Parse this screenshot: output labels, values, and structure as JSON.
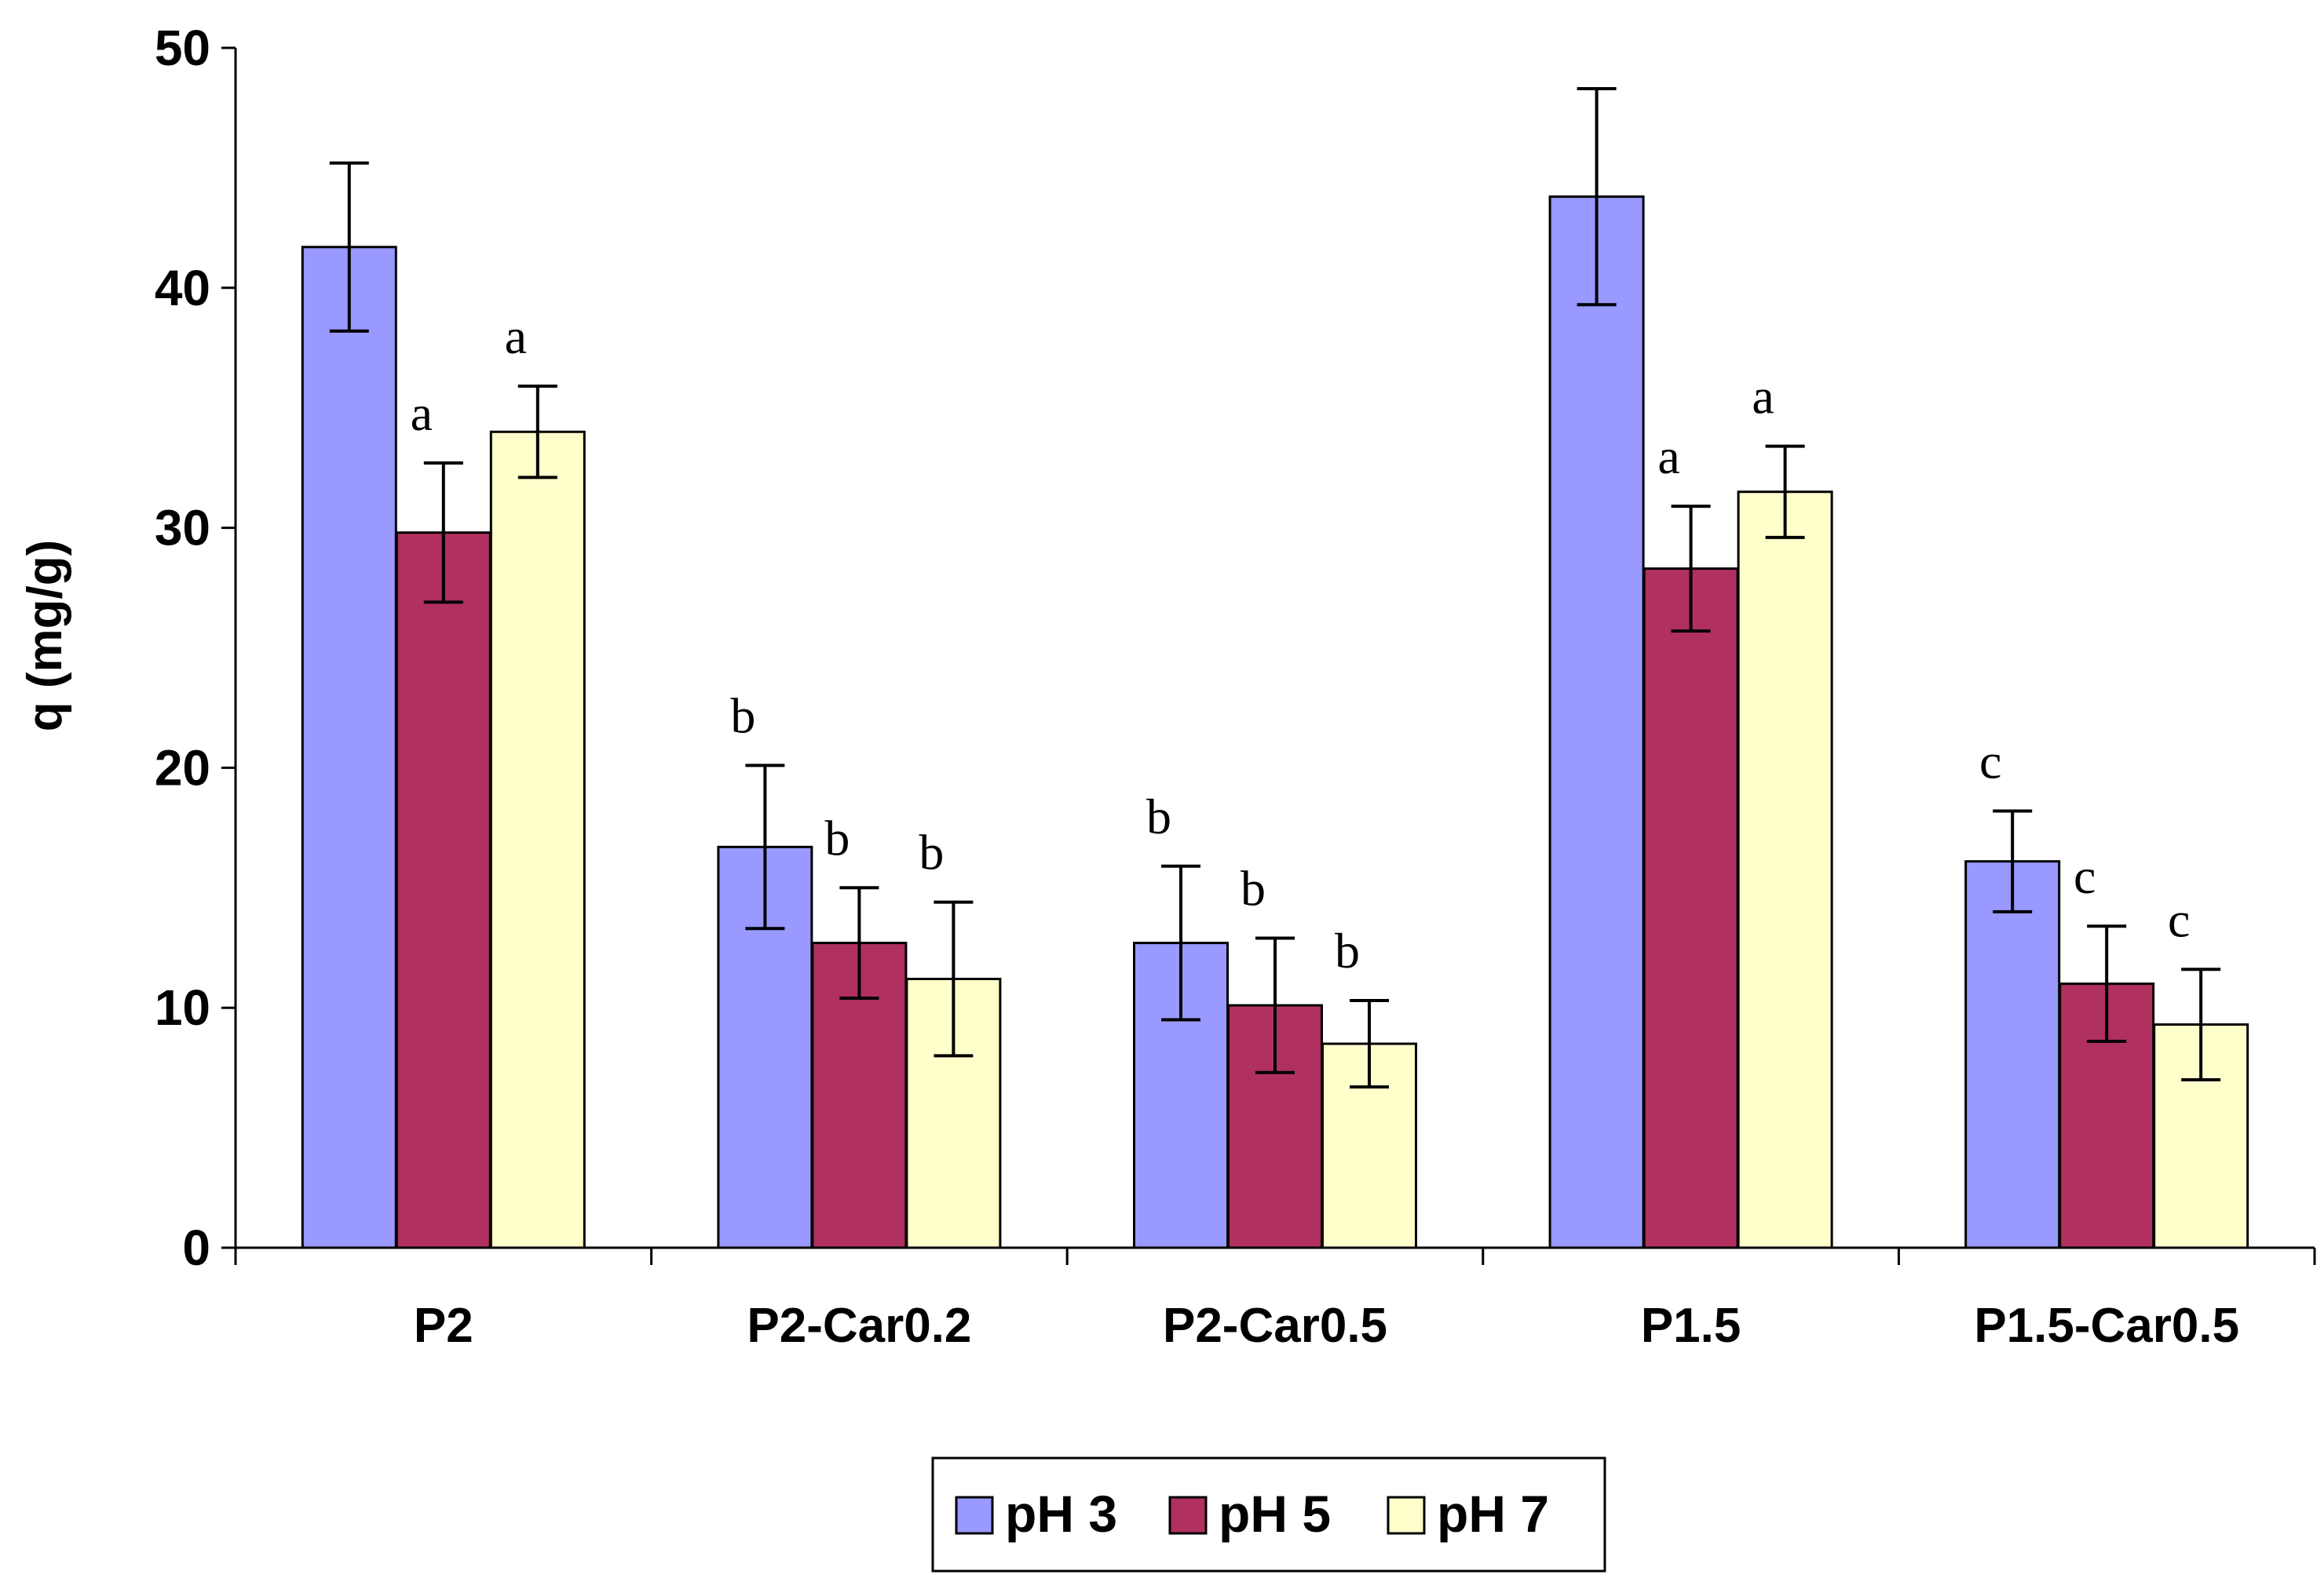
{
  "chart_data": {
    "type": "bar",
    "title": "",
    "xlabel": "",
    "ylabel": "q (mg/g)",
    "ylim": [
      0,
      50
    ],
    "yticks": [
      0,
      10,
      20,
      30,
      40,
      50
    ],
    "categories": [
      "P2",
      "P2-Car0.2",
      "P2-Car0.5",
      "P1.5",
      "P1.5-Car0.5"
    ],
    "series": [
      {
        "name": "pH 3",
        "color": "#9999FF",
        "values": [
          41.7,
          16.7,
          12.7,
          43.8,
          16.1
        ],
        "errors": [
          3.5,
          3.4,
          3.2,
          4.5,
          2.1
        ],
        "letters": [
          "",
          "b",
          "b",
          "",
          "c"
        ]
      },
      {
        "name": "pH 5",
        "color": "#B03060",
        "values": [
          29.8,
          12.7,
          10.1,
          28.3,
          11.0
        ],
        "errors": [
          2.9,
          2.3,
          2.8,
          2.6,
          2.4
        ],
        "letters": [
          "a",
          "b",
          "b",
          "a",
          "c"
        ]
      },
      {
        "name": "pH 7",
        "color": "#FFFFCC",
        "values": [
          34.0,
          11.2,
          8.5,
          31.5,
          9.3
        ],
        "errors": [
          1.9,
          3.2,
          1.8,
          1.9,
          2.3
        ],
        "letters": [
          "a",
          "b",
          "b",
          "a",
          "c"
        ]
      }
    ],
    "legend": {
      "position": "bottom-center",
      "entries": [
        "pH 3",
        "pH 5",
        "pH 7"
      ]
    },
    "grid": false
  }
}
